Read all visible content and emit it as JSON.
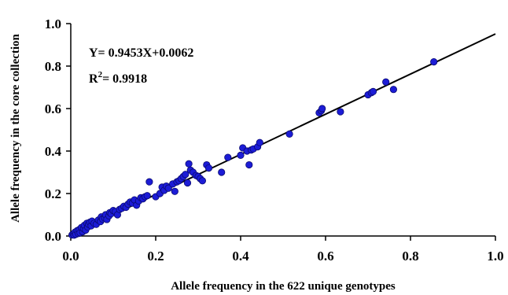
{
  "chart_data": {
    "type": "scatter",
    "xlabel": "Allele frequency in the 622 unique genotypes",
    "ylabel": "Allele frequency in the core collection",
    "xlim": [
      0,
      1.0
    ],
    "ylim": [
      0,
      1.0
    ],
    "x_ticks": [
      "0.0",
      "0.2",
      "0.4",
      "0.6",
      "0.8",
      "1.0"
    ],
    "y_ticks": [
      "0.0",
      "0.2",
      "0.4",
      "0.6",
      "0.8",
      "1.0"
    ],
    "grid": false,
    "legend": "none",
    "point_color": "#1c1cd6",
    "line_color": "#000000",
    "equation": "Y= 0.9453X+0.0062",
    "r2_label": "R",
    "r2_sup": "2",
    "r2_value": "= 0.9918",
    "fit": {
      "slope": 0.9453,
      "intercept": 0.0062,
      "x_range": [
        0,
        1.0
      ]
    },
    "points": [
      [
        0.003,
        0.005
      ],
      [
        0.006,
        0.01
      ],
      [
        0.008,
        0.004
      ],
      [
        0.01,
        0.018
      ],
      [
        0.012,
        0.008
      ],
      [
        0.015,
        0.025
      ],
      [
        0.018,
        0.012
      ],
      [
        0.02,
        0.03
      ],
      [
        0.022,
        0.015
      ],
      [
        0.025,
        0.04
      ],
      [
        0.028,
        0.02
      ],
      [
        0.03,
        0.035
      ],
      [
        0.032,
        0.05
      ],
      [
        0.035,
        0.028
      ],
      [
        0.038,
        0.06
      ],
      [
        0.04,
        0.042
      ],
      [
        0.042,
        0.055
      ],
      [
        0.045,
        0.065
      ],
      [
        0.048,
        0.048
      ],
      [
        0.05,
        0.07
      ],
      [
        0.055,
        0.06
      ],
      [
        0.06,
        0.055
      ],
      [
        0.065,
        0.075
      ],
      [
        0.07,
        0.068
      ],
      [
        0.072,
        0.09
      ],
      [
        0.075,
        0.08
      ],
      [
        0.08,
        0.085
      ],
      [
        0.082,
        0.1
      ],
      [
        0.085,
        0.078
      ],
      [
        0.09,
        0.095
      ],
      [
        0.092,
        0.11
      ],
      [
        0.095,
        0.105
      ],
      [
        0.1,
        0.12
      ],
      [
        0.105,
        0.115
      ],
      [
        0.11,
        0.1
      ],
      [
        0.115,
        0.125
      ],
      [
        0.12,
        0.13
      ],
      [
        0.125,
        0.14
      ],
      [
        0.13,
        0.135
      ],
      [
        0.135,
        0.15
      ],
      [
        0.14,
        0.16
      ],
      [
        0.145,
        0.155
      ],
      [
        0.15,
        0.17
      ],
      [
        0.155,
        0.145
      ],
      [
        0.16,
        0.165
      ],
      [
        0.165,
        0.18
      ],
      [
        0.17,
        0.175
      ],
      [
        0.175,
        0.185
      ],
      [
        0.18,
        0.19
      ],
      [
        0.185,
        0.255
      ],
      [
        0.2,
        0.185
      ],
      [
        0.21,
        0.2
      ],
      [
        0.215,
        0.23
      ],
      [
        0.22,
        0.215
      ],
      [
        0.225,
        0.235
      ],
      [
        0.23,
        0.225
      ],
      [
        0.24,
        0.245
      ],
      [
        0.245,
        0.21
      ],
      [
        0.25,
        0.255
      ],
      [
        0.255,
        0.26
      ],
      [
        0.26,
        0.27
      ],
      [
        0.265,
        0.28
      ],
      [
        0.27,
        0.29
      ],
      [
        0.275,
        0.25
      ],
      [
        0.278,
        0.34
      ],
      [
        0.282,
        0.31
      ],
      [
        0.288,
        0.3
      ],
      [
        0.295,
        0.285
      ],
      [
        0.3,
        0.28
      ],
      [
        0.305,
        0.27
      ],
      [
        0.31,
        0.26
      ],
      [
        0.32,
        0.335
      ],
      [
        0.325,
        0.32
      ],
      [
        0.355,
        0.3
      ],
      [
        0.37,
        0.37
      ],
      [
        0.4,
        0.38
      ],
      [
        0.405,
        0.415
      ],
      [
        0.415,
        0.4
      ],
      [
        0.42,
        0.335
      ],
      [
        0.425,
        0.405
      ],
      [
        0.43,
        0.41
      ],
      [
        0.44,
        0.42
      ],
      [
        0.445,
        0.44
      ],
      [
        0.515,
        0.48
      ],
      [
        0.585,
        0.58
      ],
      [
        0.59,
        0.59
      ],
      [
        0.592,
        0.6
      ],
      [
        0.635,
        0.585
      ],
      [
        0.7,
        0.665
      ],
      [
        0.708,
        0.675
      ],
      [
        0.712,
        0.68
      ],
      [
        0.742,
        0.725
      ],
      [
        0.76,
        0.69
      ],
      [
        0.855,
        0.82
      ]
    ]
  }
}
